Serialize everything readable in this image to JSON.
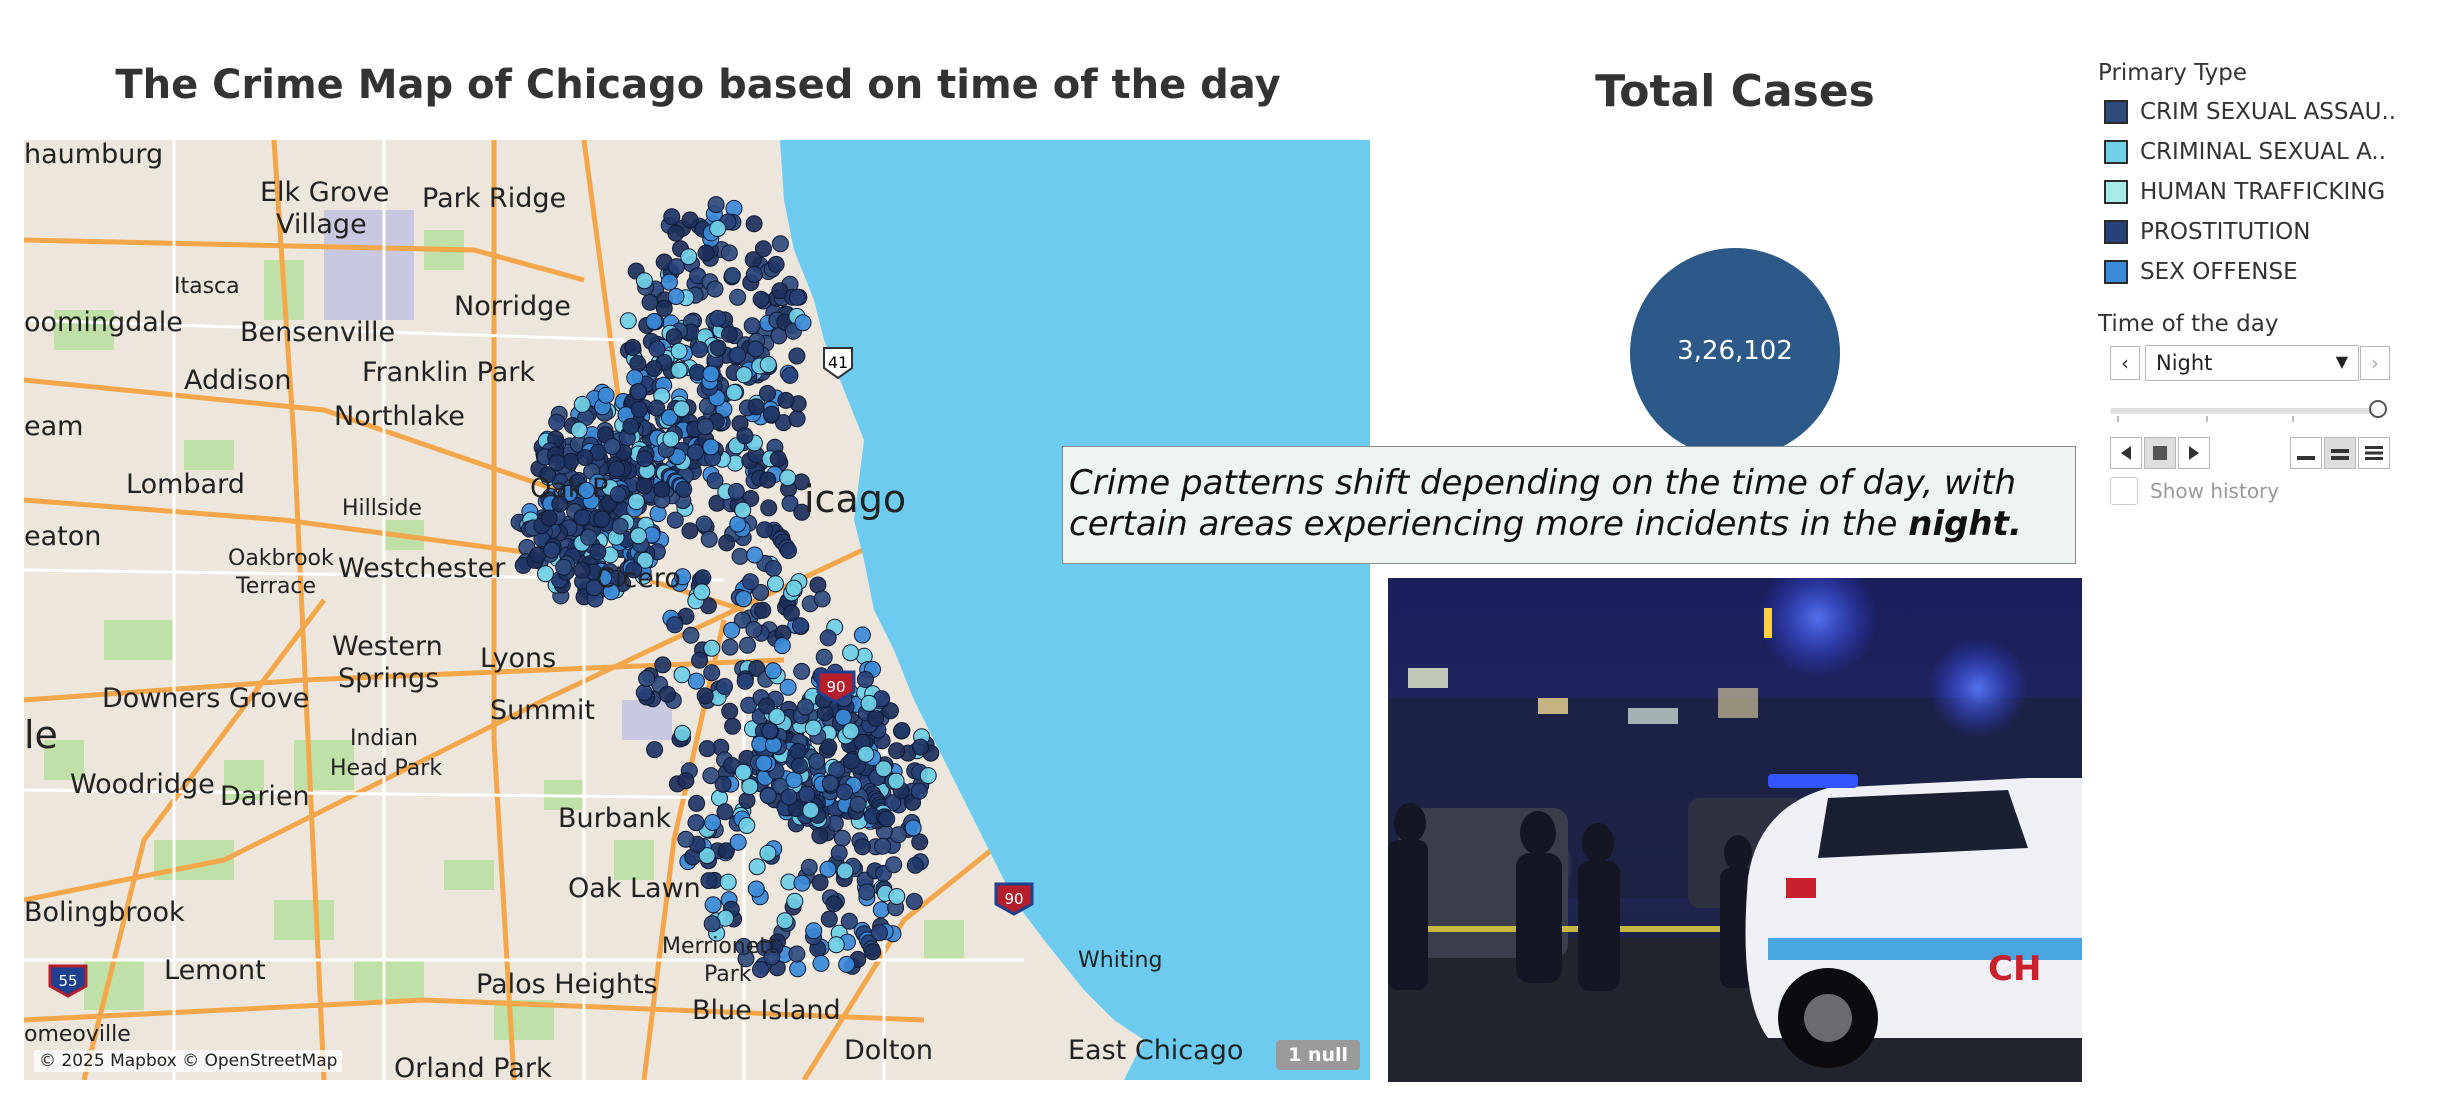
{
  "map": {
    "title": "The Crime Map of Chicago based on time of the day",
    "attribution": "© 2025 Mapbox © OpenStreetMap",
    "null_badge": "1 null",
    "places": [
      "haumburg",
      "Elk Grove",
      "Village",
      "Park Ridge",
      "Itasca",
      "Norridge",
      "oomingdale",
      "Bensenville",
      "Addison",
      "Franklin Park",
      "eam",
      "Northlake",
      "Lombard",
      "Hillside",
      "Oak P",
      "eaton",
      "Oakbrook",
      "Terrace",
      "Westchester",
      "Cicero",
      "Western",
      "Springs",
      "Lyons",
      "Downers Grove",
      "Summit",
      "Indian",
      "Head Park",
      "le",
      "Woodridge",
      "Darien",
      "Burbank",
      "Oak Lawn",
      "Bolingbrook",
      "Merrionett",
      "Park",
      "Lemont",
      "Palos Heights",
      "Blue Island",
      "Whiting",
      "Dolton",
      "East Chicago",
      "omeoville",
      "Orland Park",
      "icago"
    ],
    "highway_labels": [
      "41",
      "90",
      "90",
      "55"
    ]
  },
  "total_cases": {
    "title": "Total Cases",
    "value": "3,26,102",
    "color": "#2c5987"
  },
  "annotation": {
    "text": "Crime patterns shift depending on the time of day, with certain areas experiencing more incidents in the",
    "emphasis": "night."
  },
  "legend": {
    "title": "Primary Type",
    "items": [
      {
        "label": "CRIM SEXUAL ASSAU..",
        "color": "#2f4b7c"
      },
      {
        "label": "CRIMINAL SEXUAL A..",
        "color": "#6fcfe6"
      },
      {
        "label": "HUMAN TRAFFICKING",
        "color": "#a8ece8"
      },
      {
        "label": "PROSTITUTION",
        "color": "#27417a"
      },
      {
        "label": "SEX OFFENSE",
        "color": "#3a8ad8"
      }
    ]
  },
  "time_filter": {
    "title": "Time of the day",
    "selected": "Night",
    "show_history_label": "Show history"
  },
  "icons": {
    "prev": "chevron-left-icon",
    "next": "chevron-right-icon",
    "dropdown": "caret-down-icon",
    "play_back": "play-back-icon",
    "stop": "stop-icon",
    "play_forward": "play-forward-icon"
  },
  "colors": {
    "water": "#6dcbf0",
    "land": "#ece6dd",
    "park": "#bfe0a6",
    "road": "#f4a64a"
  }
}
